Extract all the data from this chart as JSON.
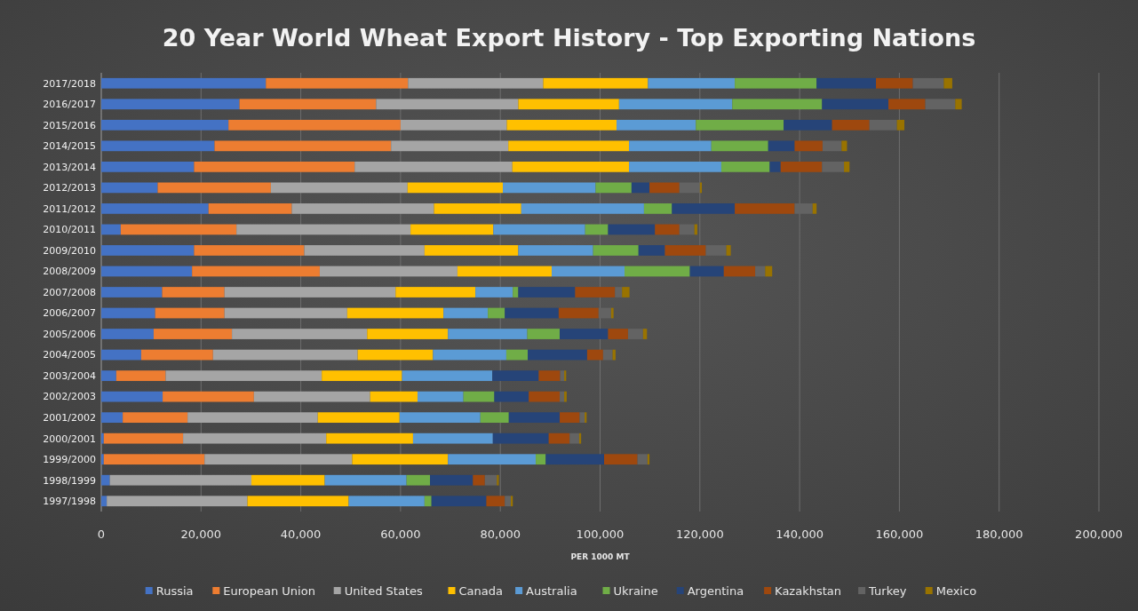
{
  "chart_data": {
    "type": "bar",
    "orientation": "horizontal",
    "stacked": true,
    "title": "20 Year World Wheat Export History - Top Exporting Nations",
    "xlabel": "PER 1000 MT",
    "categories": [
      "2017/2018",
      "2016/2017",
      "2015/2016",
      "2014/2015",
      "2013/2014",
      "2012/2013",
      "2011/2012",
      "2010/2011",
      "2009/2010",
      "2008/2009",
      "2007/2008",
      "2006/2007",
      "2005/2006",
      "2004/2005",
      "2003/2004",
      "2002/2003",
      "2001/2002",
      "2000/2001",
      "1999/2000",
      "1998/1999",
      "1997/1998"
    ],
    "xlim": [
      0,
      200000
    ],
    "xticks": [
      {
        "value": 0,
        "label": "0"
      },
      {
        "value": 20000,
        "label": "20,000"
      },
      {
        "value": 40000,
        "label": "40,000"
      },
      {
        "value": 60000,
        "label": "60,000"
      },
      {
        "value": 80000,
        "label": "80,000"
      },
      {
        "value": 100000,
        "label": "100,000"
      },
      {
        "value": 120000,
        "label": "120,000"
      },
      {
        "value": 140000,
        "label": "140,000"
      },
      {
        "value": 160000,
        "label": "160,000"
      },
      {
        "value": 180000,
        "label": "180,000"
      },
      {
        "value": 200000,
        "label": "200,000"
      }
    ],
    "grid": "x",
    "legend": "bottom",
    "series": [
      {
        "name": "Russia",
        "color": "#4472c4",
        "values": [
          33000,
          27700,
          25500,
          22700,
          18600,
          11300,
          21500,
          3900,
          18600,
          18200,
          12200,
          10800,
          10500,
          8000,
          3000,
          12300,
          4300,
          500,
          500,
          1700,
          1100
        ]
      },
      {
        "name": "European Union",
        "color": "#ed7d31",
        "values": [
          28500,
          27400,
          34500,
          35400,
          32200,
          22700,
          16700,
          23200,
          22100,
          25600,
          12500,
          13900,
          15700,
          14400,
          9900,
          18300,
          13000,
          15900,
          20200,
          0,
          0
        ]
      },
      {
        "name": "United States",
        "color": "#a5a5a5",
        "values": [
          27100,
          28500,
          21300,
          23500,
          31600,
          27400,
          28500,
          34900,
          24100,
          27600,
          34300,
          24600,
          27100,
          29000,
          31300,
          23300,
          26100,
          28700,
          29600,
          28400,
          28200
        ]
      },
      {
        "name": "Canada",
        "color": "#ffc000",
        "values": [
          21000,
          20200,
          22000,
          24200,
          23400,
          19100,
          17500,
          16600,
          18800,
          18900,
          16000,
          19300,
          16200,
          15100,
          16100,
          9500,
          16400,
          17400,
          19200,
          14700,
          20300
        ]
      },
      {
        "name": "Australia",
        "color": "#5b9bd5",
        "values": [
          17400,
          22700,
          15900,
          16500,
          18500,
          18600,
          24600,
          18400,
          15000,
          14600,
          7500,
          8900,
          15900,
          14700,
          18100,
          9200,
          16200,
          16000,
          17600,
          16400,
          15200
        ]
      },
      {
        "name": "Ukraine",
        "color": "#70ad47",
        "values": [
          16400,
          18000,
          17600,
          11400,
          9700,
          7200,
          5600,
          4600,
          9100,
          13100,
          1100,
          3400,
          6500,
          4300,
          0,
          6200,
          5700,
          0,
          2000,
          4700,
          1400
        ]
      },
      {
        "name": "Argentina",
        "color": "#264478",
        "values": [
          11900,
          13300,
          9700,
          5300,
          2200,
          3600,
          12600,
          9400,
          5300,
          6800,
          11400,
          10800,
          9700,
          11900,
          9300,
          6900,
          10200,
          11200,
          11700,
          8600,
          11000
        ]
      },
      {
        "name": "Kazakhstan",
        "color": "#9e480e",
        "values": [
          7400,
          7400,
          7500,
          5600,
          8300,
          6000,
          12000,
          4900,
          8200,
          6300,
          8000,
          8000,
          4000,
          3200,
          4300,
          6200,
          4000,
          4200,
          6700,
          2400,
          3700
        ]
      },
      {
        "name": "Turkey",
        "color": "#636363",
        "values": [
          6200,
          6000,
          5500,
          3800,
          4400,
          4100,
          3600,
          3000,
          4100,
          2000,
          1400,
          2500,
          3000,
          1900,
          800,
          900,
          1000,
          1900,
          2000,
          2400,
          1200
        ]
      },
      {
        "name": "Mexico",
        "color": "#997300",
        "values": [
          1700,
          1300,
          1500,
          1100,
          1100,
          400,
          800,
          600,
          900,
          1400,
          1500,
          500,
          800,
          600,
          400,
          500,
          400,
          400,
          400,
          400,
          400
        ]
      }
    ]
  }
}
